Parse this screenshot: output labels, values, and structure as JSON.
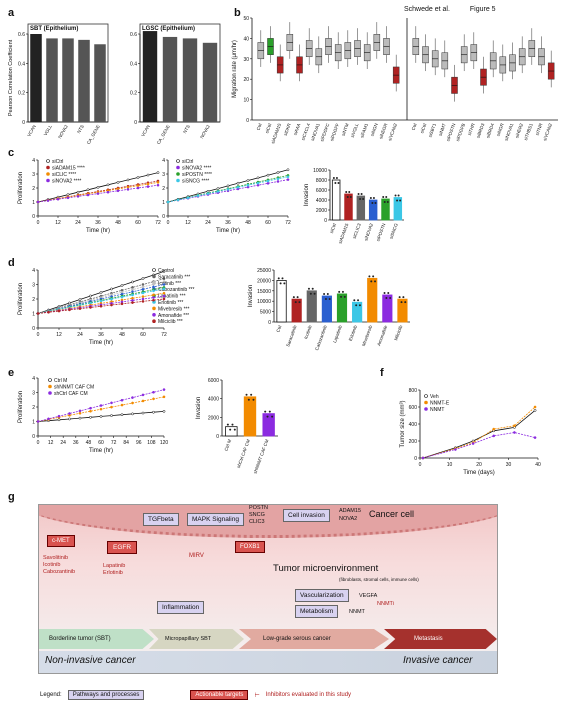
{
  "header": {
    "citation": "Schwede et al.",
    "figure": "Figure 5"
  },
  "panel_letters": [
    "a",
    "b",
    "c",
    "d",
    "e",
    "f",
    "g"
  ],
  "colors": {
    "black": "#111111",
    "gray": "#666666",
    "red": "#b02222",
    "green": "#2aa02a",
    "blue": "#2a5fd0",
    "cyan": "#3cc7e6",
    "orange": "#f28b00",
    "purple": "#8b2be0",
    "lightgray": "#bdbdbd"
  },
  "chart_data": [
    {
      "id": "a1",
      "type": "bar",
      "title": "SBT (Epithelium)",
      "ylabel": "Pearson Correlation Coefficient",
      "ylim": [
        0,
        0.6
      ],
      "yticks": [
        0.0,
        0.2,
        0.4,
        0.6
      ],
      "categories": [
        "VCAN",
        "VGLL",
        "NOVA2",
        "NTS",
        "CA_GENE"
      ],
      "values": [
        0.6,
        0.57,
        0.57,
        0.56,
        0.53
      ]
    },
    {
      "id": "a2",
      "type": "bar",
      "title": "LGSC (Epithelium)",
      "ylim": [
        0,
        0.6
      ],
      "yticks": [
        0.0,
        0.2,
        0.4,
        0.6
      ],
      "categories": [
        "VCAN",
        "CA_GENE",
        "NTS",
        "NOVA2"
      ],
      "values": [
        0.62,
        0.58,
        0.57,
        0.54
      ]
    },
    {
      "id": "b",
      "type": "box",
      "ylabel": "Migration rate (μm/hr)",
      "ylim": [
        0,
        50
      ],
      "yticks": [
        0,
        10,
        20,
        30,
        40,
        50
      ],
      "groups": [
        {
          "categories": [
            "Ctrl",
            "siCtrl",
            "siADAM15",
            "siDKR",
            "siAAA",
            "siCXCL4",
            "siNOVA1",
            "siPDGFC",
            "siPDGFF",
            "siNTM",
            "siVGLL",
            "siFAM1",
            "siNGN",
            "siNEGR",
            "siVCAN2"
          ],
          "medians": [
            34,
            36,
            27,
            38,
            27,
            35,
            31,
            36,
            33,
            34,
            35,
            33,
            38,
            36,
            22
          ],
          "colors": [
            "gray",
            "green",
            "red",
            "gray",
            "red",
            "gray",
            "gray",
            "gray",
            "gray",
            "gray",
            "gray",
            "gray",
            "gray",
            "gray",
            "red"
          ]
        },
        {
          "categories": [
            "Ctrl",
            "siCtrl",
            "siSBT1",
            "siNMT",
            "siPOSTN",
            "siPDGFB",
            "siTHR",
            "siBRD3",
            "siBRD4",
            "siNGR",
            "siNOVA1",
            "siHER2",
            "siTHBS1",
            "siTNR",
            "siVCAN2"
          ],
          "medians": [
            36,
            32,
            30,
            29,
            17,
            32,
            33,
            21,
            29,
            27,
            28,
            31,
            35,
            31,
            24
          ],
          "colors": [
            "gray",
            "gray",
            "gray",
            "gray",
            "red",
            "gray",
            "gray",
            "red",
            "gray",
            "gray",
            "gray",
            "gray",
            "gray",
            "gray",
            "red"
          ]
        }
      ]
    },
    {
      "id": "c1",
      "type": "line",
      "ylabel": "Proliferation",
      "xlabel": "Time (hr)",
      "xlim": [
        0,
        72
      ],
      "ylim": [
        0,
        4
      ],
      "xticks": [
        0,
        12,
        24,
        36,
        48,
        60,
        72
      ],
      "yticks": [
        0,
        1,
        2,
        3,
        4
      ],
      "series": [
        {
          "name": "siCtrl",
          "color": "black",
          "end": 3.1
        },
        {
          "name": "siADAM15 ****",
          "color": "red",
          "end": 2.5
        },
        {
          "name": "siCLIC ****",
          "color": "orange",
          "end": 2.4
        },
        {
          "name": "siNOVA2 ****",
          "color": "purple",
          "end": 2.2
        }
      ]
    },
    {
      "id": "c2",
      "type": "line",
      "xlabel": "Time (hr)",
      "xlim": [
        0,
        72
      ],
      "ylim": [
        0,
        4
      ],
      "xticks": [
        0,
        12,
        24,
        36,
        48,
        60,
        72
      ],
      "yticks": [
        0,
        1,
        2,
        3,
        4
      ],
      "series": [
        {
          "name": "siCtrl",
          "color": "black",
          "end": 3.3
        },
        {
          "name": "siNOVA2 ****",
          "color": "purple",
          "end": 2.6
        },
        {
          "name": "siPOSTN ****",
          "color": "green",
          "end": 2.9
        },
        {
          "name": "siSNCG ****",
          "color": "cyan",
          "end": 2.8
        }
      ]
    },
    {
      "id": "c3",
      "type": "bar",
      "ylabel": "Invasion",
      "ylim": [
        0,
        10000
      ],
      "yticks": [
        0,
        2000,
        4000,
        6000,
        8000,
        10000
      ],
      "categories": [
        "siCtrl",
        "siADAM15",
        "siCLIC3",
        "siNOVA2",
        "siPOSTN",
        "siSNCG"
      ],
      "values": [
        8000,
        5200,
        4800,
        4000,
        4200,
        4500
      ],
      "colors": [
        "black",
        "red",
        "gray",
        "blue",
        "green",
        "cyan"
      ]
    },
    {
      "id": "d1",
      "type": "line",
      "ylabel": "Proliferation",
      "xlabel": "Time (hr)",
      "xlim": [
        0,
        72
      ],
      "ylim": [
        0,
        4
      ],
      "xticks": [
        0,
        12,
        24,
        36,
        48,
        60,
        72
      ],
      "yticks": [
        0,
        1,
        2,
        3,
        4
      ],
      "series": [
        {
          "name": "Control",
          "color": "black",
          "end": 3.9
        },
        {
          "name": "Saracatinib ***",
          "color": "gray",
          "end": 3.4
        },
        {
          "name": "Icotinib ***",
          "color": "lightgray",
          "end": 3.2
        },
        {
          "name": "Cabozantinib ***",
          "color": "blue",
          "end": 3.0
        },
        {
          "name": "Lapatinib ***",
          "color": "green",
          "end": 2.8
        },
        {
          "name": "Erlotinib ***",
          "color": "cyan",
          "end": 2.7
        },
        {
          "name": "Mivebresib ***",
          "color": "orange",
          "end": 2.4
        },
        {
          "name": "Amonafide ***",
          "color": "purple",
          "end": 2.2
        },
        {
          "name": "Milciclib ***",
          "color": "red",
          "end": 2.0
        }
      ]
    },
    {
      "id": "d2",
      "type": "bar",
      "ylabel": "Invasion",
      "ylim": [
        0,
        25000
      ],
      "yticks": [
        0,
        5000,
        10000,
        15000,
        20000,
        25000
      ],
      "categories": [
        "Ctrl",
        "Saracatinib",
        "Icotinib",
        "Cabozantinib",
        "Lapatinib",
        "Erlotinib",
        "Mivebresib",
        "Amonafide",
        "Milciclib"
      ],
      "values": [
        20000,
        11000,
        15000,
        12500,
        13500,
        9500,
        21000,
        13000,
        11000
      ],
      "colors": [
        "black",
        "red",
        "gray",
        "blue",
        "green",
        "cyan",
        "orange",
        "purple",
        "orange"
      ]
    },
    {
      "id": "e1",
      "type": "line",
      "ylabel": "Proliferation",
      "xlabel": "Time (hr)",
      "xlim": [
        0,
        120
      ],
      "ylim": [
        0,
        4
      ],
      "xticks": [
        0,
        12,
        24,
        36,
        48,
        60,
        72,
        84,
        96,
        108,
        120
      ],
      "yticks": [
        0,
        1,
        2,
        3,
        4
      ],
      "series": [
        {
          "name": "Ctrl M",
          "color": "black",
          "end": 1.7
        },
        {
          "name": "shNNMT CAF CM",
          "color": "orange",
          "end": 2.7
        },
        {
          "name": "shCtrl CAF CM",
          "color": "purple",
          "end": 3.2
        }
      ]
    },
    {
      "id": "e2",
      "type": "bar",
      "ylabel": "Invasion",
      "ylim": [
        0,
        6000
      ],
      "yticks": [
        0,
        2000,
        4000,
        6000
      ],
      "categories": [
        "Ctrl M",
        "shCtrl CAF CM",
        "shNNMT CAF CM"
      ],
      "values": [
        1000,
        4200,
        2400
      ],
      "colors": [
        "black",
        "orange",
        "purple"
      ]
    },
    {
      "id": "f",
      "type": "line",
      "ylabel": "Tumor size (mm³)",
      "xlabel": "Time (days)",
      "xlim": [
        0,
        40
      ],
      "ylim": [
        0,
        800
      ],
      "xticks": [
        0,
        10,
        20,
        30,
        40
      ],
      "yticks": [
        0,
        200,
        400,
        600,
        800
      ],
      "series": [
        {
          "name": "Veh",
          "color": "black",
          "values": [
            [
              1,
              0
            ],
            [
              12,
              120
            ],
            [
              18,
              200
            ],
            [
              25,
              320
            ],
            [
              32,
              360
            ],
            [
              39,
              560
            ]
          ]
        },
        {
          "name": "NNMT-E",
          "color": "orange",
          "values": [
            [
              1,
              0
            ],
            [
              12,
              110
            ],
            [
              18,
              180
            ],
            [
              25,
              340
            ],
            [
              32,
              380
            ],
            [
              39,
              600
            ]
          ]
        },
        {
          "name": "NNMT",
          "color": "purple",
          "values": [
            [
              1,
              0
            ],
            [
              12,
              100
            ],
            [
              18,
              170
            ],
            [
              25,
              260
            ],
            [
              32,
              300
            ],
            [
              39,
              240
            ]
          ]
        }
      ]
    }
  ],
  "bars_a1_labels": [
    "VCAN",
    "VGLL",
    "NOVA2",
    "NTS",
    "CA_GENE"
  ],
  "diagram": {
    "cancer_cell": "Cancer cell",
    "tgfbeta": "TGFbeta",
    "mapk": "MAPK Signaling",
    "cell_invasion": "Cell invasion",
    "postn": "POSTN",
    "sncg": "SNCG",
    "clic3": "CLIC3",
    "adam15": "ADAM15",
    "nova2": "NOVA2",
    "cmet": "c-MET",
    "egfr": "EGFR",
    "foxb1": "FOXB1",
    "inhib_left": [
      "Savolitinib",
      "Icotinib",
      "Cabozantinib"
    ],
    "inhib_mid": [
      "Lapatinib",
      "Erlotinib"
    ],
    "mirv": "MIRV",
    "tme": "Tumor microenvironment",
    "tme_sub": "(fibroblasts, stromal cells, immune cells)",
    "inflammation": "Inflammation",
    "vascularization": "Vascularization",
    "metabolism": "Metabolism",
    "vegfa": "VEGFA",
    "nnmt": "NNMT",
    "nnmti": "NNMTi",
    "stages": [
      "Borderline tumor (SBT)",
      "Micropapillary SBT",
      "Low-grade serous cancer",
      "Metastasis"
    ],
    "non_invasive": "Non-invasive cancer",
    "invasive": "Invasive cancer",
    "legend_label": "Legend:",
    "legend_pathways": "Pathways and processes",
    "legend_targets": "Actionable targets",
    "legend_inhib": "Inhibitors evaluated in this study"
  }
}
